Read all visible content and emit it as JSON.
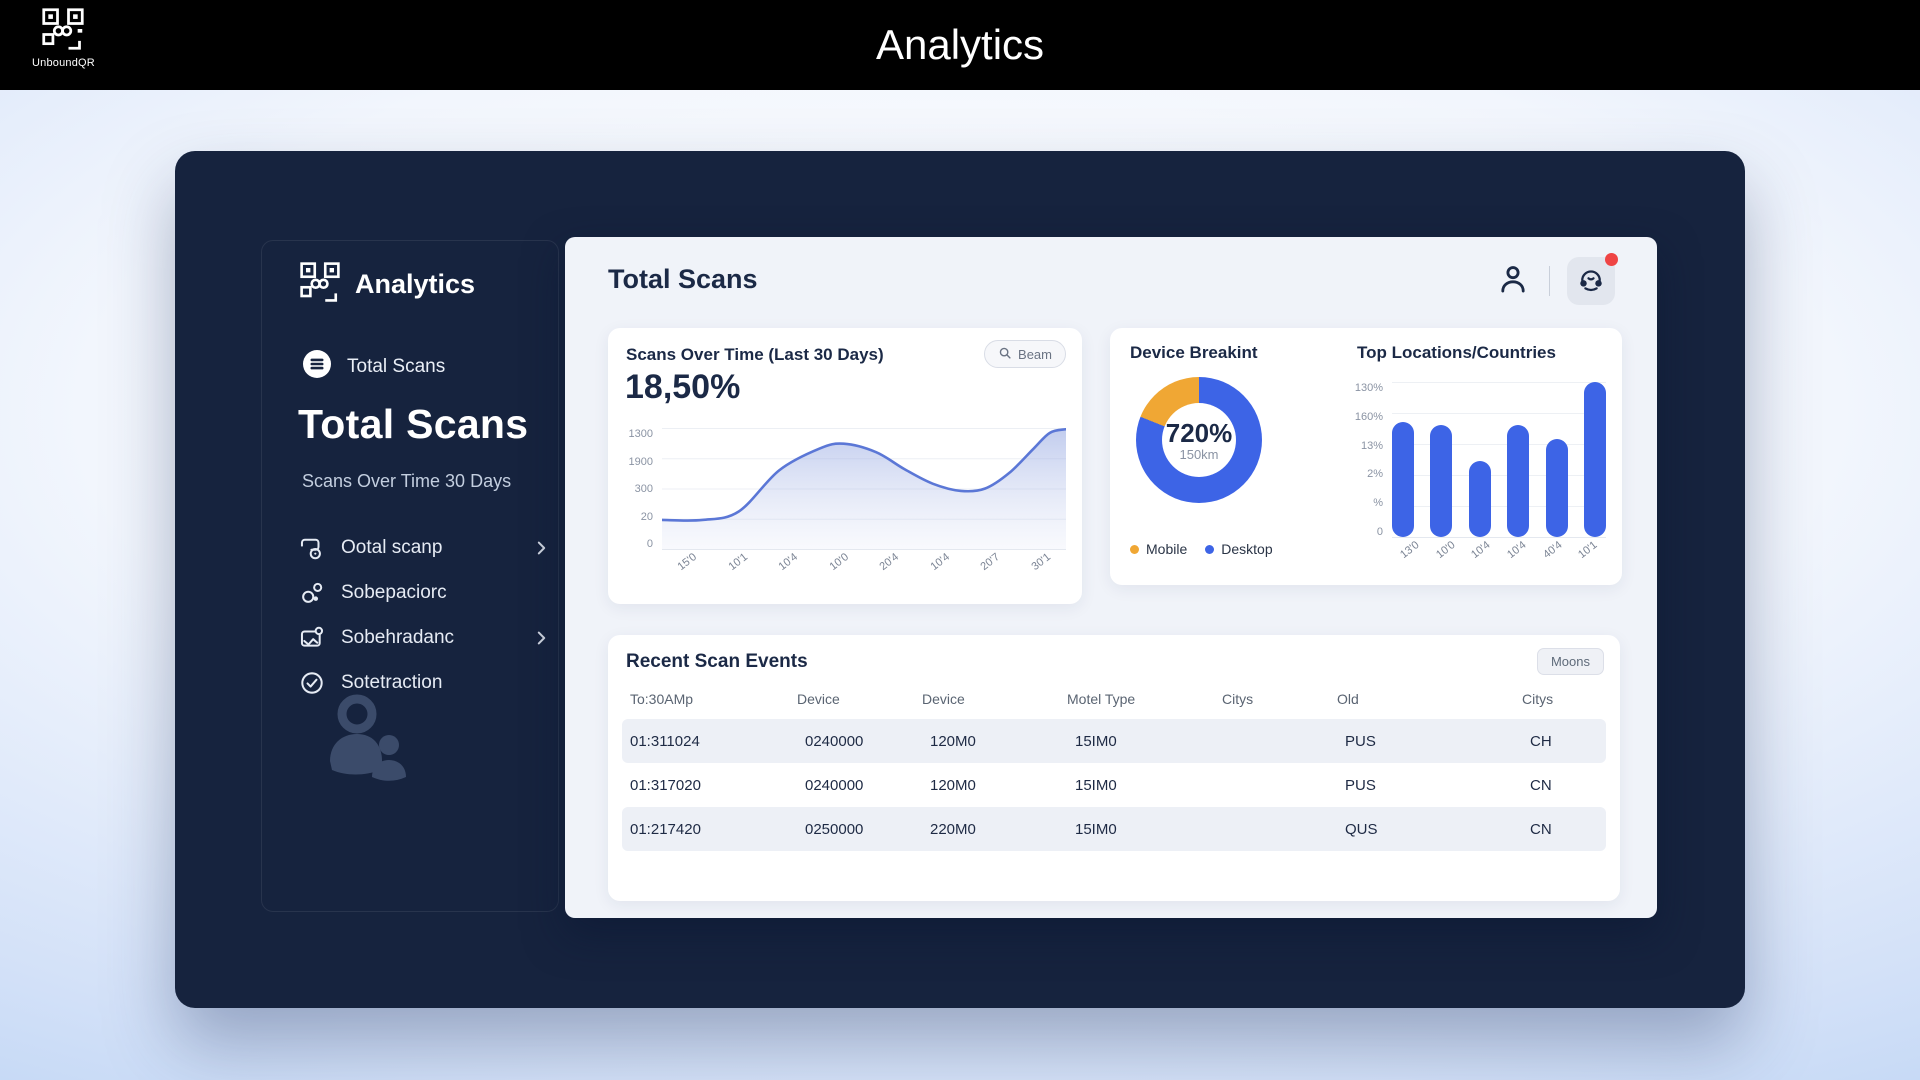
{
  "topbar": {
    "brand": "UnboundQR",
    "title": "Analytics"
  },
  "sidebar": {
    "app_title": "Analytics",
    "nav_current": {
      "label": "Total Scans"
    },
    "heading": "Total Scans",
    "subheading": "Scans Over Time 30 Days",
    "items": [
      {
        "label": "Ootal scanp",
        "icon": "scan-icon",
        "chevron": true
      },
      {
        "label": "Sobepaciorc",
        "icon": "users-icon",
        "chevron": false
      },
      {
        "label": "Sobehradanc",
        "icon": "mail-icon",
        "chevron": true
      },
      {
        "label": "Sotetraction",
        "icon": "check-icon",
        "chevron": false
      }
    ]
  },
  "main": {
    "title": "Total Scans",
    "scans_card": {
      "title": "Scans Over Time (Last 30 Days)",
      "search_button": "Beam",
      "value": "18,50%",
      "y_labels": [
        "1300",
        "1900",
        "300",
        "20",
        "0"
      ],
      "x_labels": [
        "15'0",
        "10'1",
        "10'4",
        "10'0",
        "20'4",
        "10'4",
        "20'7",
        "30'1"
      ],
      "points": [
        [
          0,
          76
        ],
        [
          10,
          76
        ],
        [
          19,
          69
        ],
        [
          29,
          35
        ],
        [
          39,
          17
        ],
        [
          45,
          13
        ],
        [
          53,
          20
        ],
        [
          60,
          34
        ],
        [
          67,
          46
        ],
        [
          74,
          52
        ],
        [
          80,
          50
        ],
        [
          86,
          37
        ],
        [
          92,
          17
        ],
        [
          96,
          4
        ],
        [
          100,
          1
        ]
      ],
      "line_color": "#5B77D6",
      "fill_color": "#9FB0E4"
    },
    "device_card": {
      "title": "Device Breakint",
      "center_value": "720%",
      "center_sub": "150km",
      "mobile_pct": 19,
      "desktop_pct": 81,
      "legend": [
        {
          "label": "Mobile",
          "color": "#F0A734"
        },
        {
          "label": "Desktop",
          "color": "#3D64E6"
        }
      ]
    },
    "locations_card": {
      "title": "Top Locations/Countries",
      "y_labels": [
        "130%",
        "160%",
        "13%",
        "2%",
        "%",
        "0"
      ],
      "bar_color": "#3D64E6",
      "bars": [
        {
          "label": "13'0",
          "pct": 74
        },
        {
          "label": "10'0",
          "pct": 72
        },
        {
          "label": "10'4",
          "pct": 49
        },
        {
          "label": "10'4",
          "pct": 72
        },
        {
          "label": "40'4",
          "pct": 63
        },
        {
          "label": "10'1",
          "pct": 100
        }
      ]
    },
    "table_card": {
      "title": "Recent Scan Events",
      "button": "Moons",
      "columns": [
        "To:30AMp",
        "Device",
        "Device",
        "Motel Type",
        "Citys",
        "Old",
        "Citys"
      ],
      "rows": [
        [
          "01:311024",
          "0240000",
          "120M0",
          "15IM0",
          "",
          "PUS",
          "CH"
        ],
        [
          "01:317020",
          "0240000",
          "120M0",
          "15IM0",
          "",
          "PUS",
          "CN"
        ],
        [
          "01:217420",
          "0250000",
          "220M0",
          "15IM0",
          "",
          "QUS",
          "CN"
        ]
      ]
    }
  },
  "colors": {
    "navy": "#16233E",
    "accent_blue": "#3D64E6",
    "accent_orange": "#F0A734",
    "panel": "#F0F3F9",
    "notification_red": "#EF4444"
  }
}
